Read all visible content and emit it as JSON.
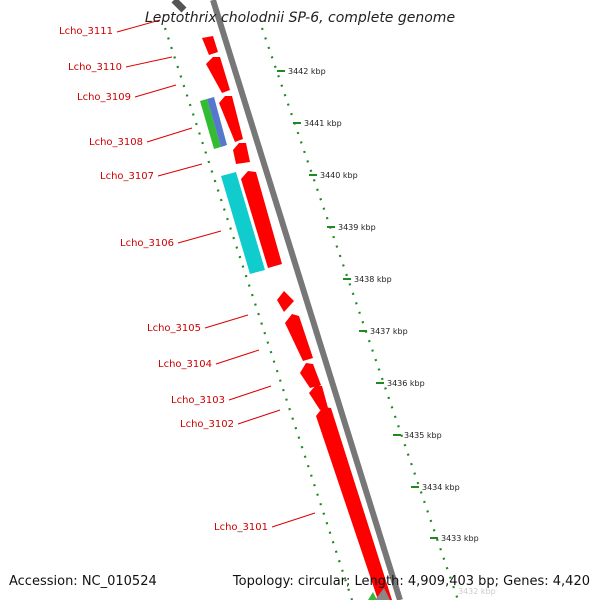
{
  "title": "Leptothrix cholodnii SP-6, complete genome",
  "accession": "Accession: NC_010524",
  "summary": "Topology: circular; Length: 4,909,403 bp; Genes: 4,420",
  "colors": {
    "gene_fwd": "#ff0000",
    "gene_green": "#33bb33",
    "gene_blue": "#5577cc",
    "gene_cyan": "#11cccc",
    "backbone": "#777777",
    "tick": "#228822",
    "label_line": "#dd0000",
    "label_text": "#cc0000"
  },
  "kbp_ticks": [
    {
      "label": "3442 kbp"
    },
    {
      "label": "3441 kbp"
    },
    {
      "label": "3440 kbp"
    },
    {
      "label": "3439 kbp"
    },
    {
      "label": "3438 kbp"
    },
    {
      "label": "3437 kbp"
    },
    {
      "label": "3436 kbp"
    },
    {
      "label": "3435 kbp"
    },
    {
      "label": "3434 kbp"
    },
    {
      "label": "3433 kbp"
    }
  ],
  "genes": [
    {
      "name": "Lcho_3111",
      "color": "#ff0000"
    },
    {
      "name": "Lcho_3110",
      "color": "#ff0000"
    },
    {
      "name": "Lcho_3109",
      "color": "#ff0000"
    },
    {
      "name": "Lcho_3108",
      "color": "#ff0000"
    },
    {
      "name": "Lcho_3107",
      "color": "#ff0000"
    },
    {
      "name": "Lcho_3106",
      "color": "#ff0000"
    },
    {
      "name": "Lcho_3105",
      "color": "#ff0000"
    },
    {
      "name": "Lcho_3104",
      "color": "#ff0000"
    },
    {
      "name": "Lcho_3103",
      "color": "#ff0000"
    },
    {
      "name": "Lcho_3102",
      "color": "#ff0000"
    },
    {
      "name": "Lcho_3101",
      "color": "#ff0000"
    }
  ]
}
